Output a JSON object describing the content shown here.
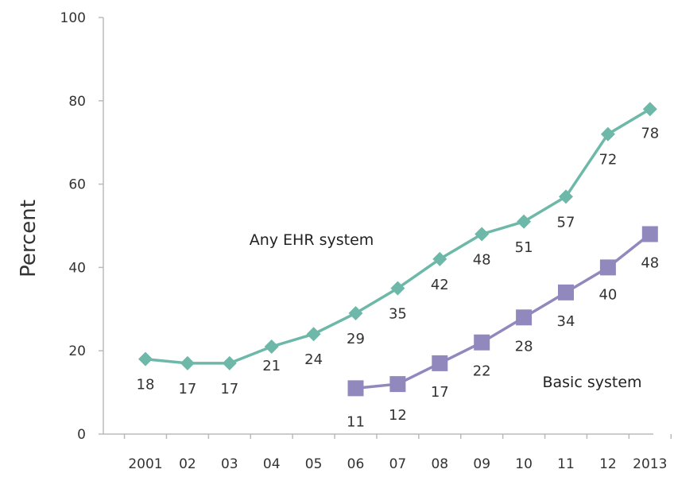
{
  "chart_data": {
    "type": "line",
    "title": "",
    "xlabel": "",
    "ylabel": "Percent",
    "ylim": [
      0,
      100
    ],
    "yticks": [
      0,
      20,
      40,
      60,
      80,
      100
    ],
    "grid": false,
    "legend": "none (series labelled directly on the plot)",
    "categories": [
      "2001",
      "02",
      "03",
      "04",
      "05",
      "06",
      "07",
      "08",
      "09",
      "10",
      "11",
      "12",
      "2013"
    ],
    "series": [
      {
        "name": "Any EHR system",
        "color": "#6db8a8",
        "marker": "diamond",
        "values": [
          18,
          17,
          17,
          21,
          24,
          29,
          35,
          42,
          48,
          51,
          57,
          72,
          78
        ]
      },
      {
        "name": "Basic system",
        "color": "#9189bd",
        "marker": "square",
        "values": [
          null,
          null,
          null,
          null,
          null,
          11,
          12,
          17,
          22,
          28,
          34,
          40,
          48
        ]
      }
    ]
  }
}
